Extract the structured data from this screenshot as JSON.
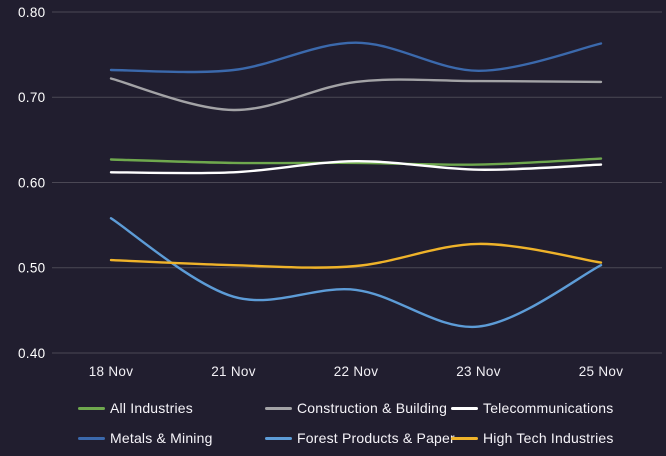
{
  "colors": {
    "background": "#211e2f",
    "grid_line": "#4b4855",
    "axis_label": "#ffffff",
    "x_axis_label": "#f2f0f5",
    "legend_label": "#f6f4f9"
  },
  "chart_data": {
    "type": "line",
    "title": "",
    "xlabel": "",
    "ylabel": "",
    "categories": [
      "18 Nov",
      "21 Nov",
      "22 Nov",
      "23 Nov",
      "25 Nov"
    ],
    "ylim": [
      0.4,
      0.8
    ],
    "yticks": [
      0.8,
      0.7,
      0.6,
      0.5,
      0.4
    ],
    "ytick_labels": [
      "0.80",
      "0.70",
      "0.60",
      "0.50",
      "0.40"
    ],
    "grid": true,
    "smooth": true,
    "legend_position": "bottom",
    "legend_rows": 2,
    "legend_columns": 3,
    "series": [
      {
        "name": "All Industries",
        "color": "#6fa84e",
        "values": [
          0.627,
          0.623,
          0.623,
          0.621,
          0.628
        ]
      },
      {
        "name": "Construction & Building",
        "color": "#a3a3a6",
        "values": [
          0.722,
          0.685,
          0.718,
          0.719,
          0.718
        ]
      },
      {
        "name": "Telecommunications",
        "color": "#ffffff",
        "values": [
          0.612,
          0.612,
          0.625,
          0.615,
          0.621
        ]
      },
      {
        "name": "Metals & Mining",
        "color": "#3b69ac",
        "values": [
          0.732,
          0.732,
          0.764,
          0.731,
          0.763
        ]
      },
      {
        "name": "Forest Products & Paper",
        "color": "#5d9cd7",
        "values": [
          0.558,
          0.466,
          0.474,
          0.431,
          0.503
        ]
      },
      {
        "name": "High Tech Industries",
        "color": "#efb32a",
        "values": [
          0.509,
          0.503,
          0.502,
          0.528,
          0.506
        ]
      }
    ]
  }
}
